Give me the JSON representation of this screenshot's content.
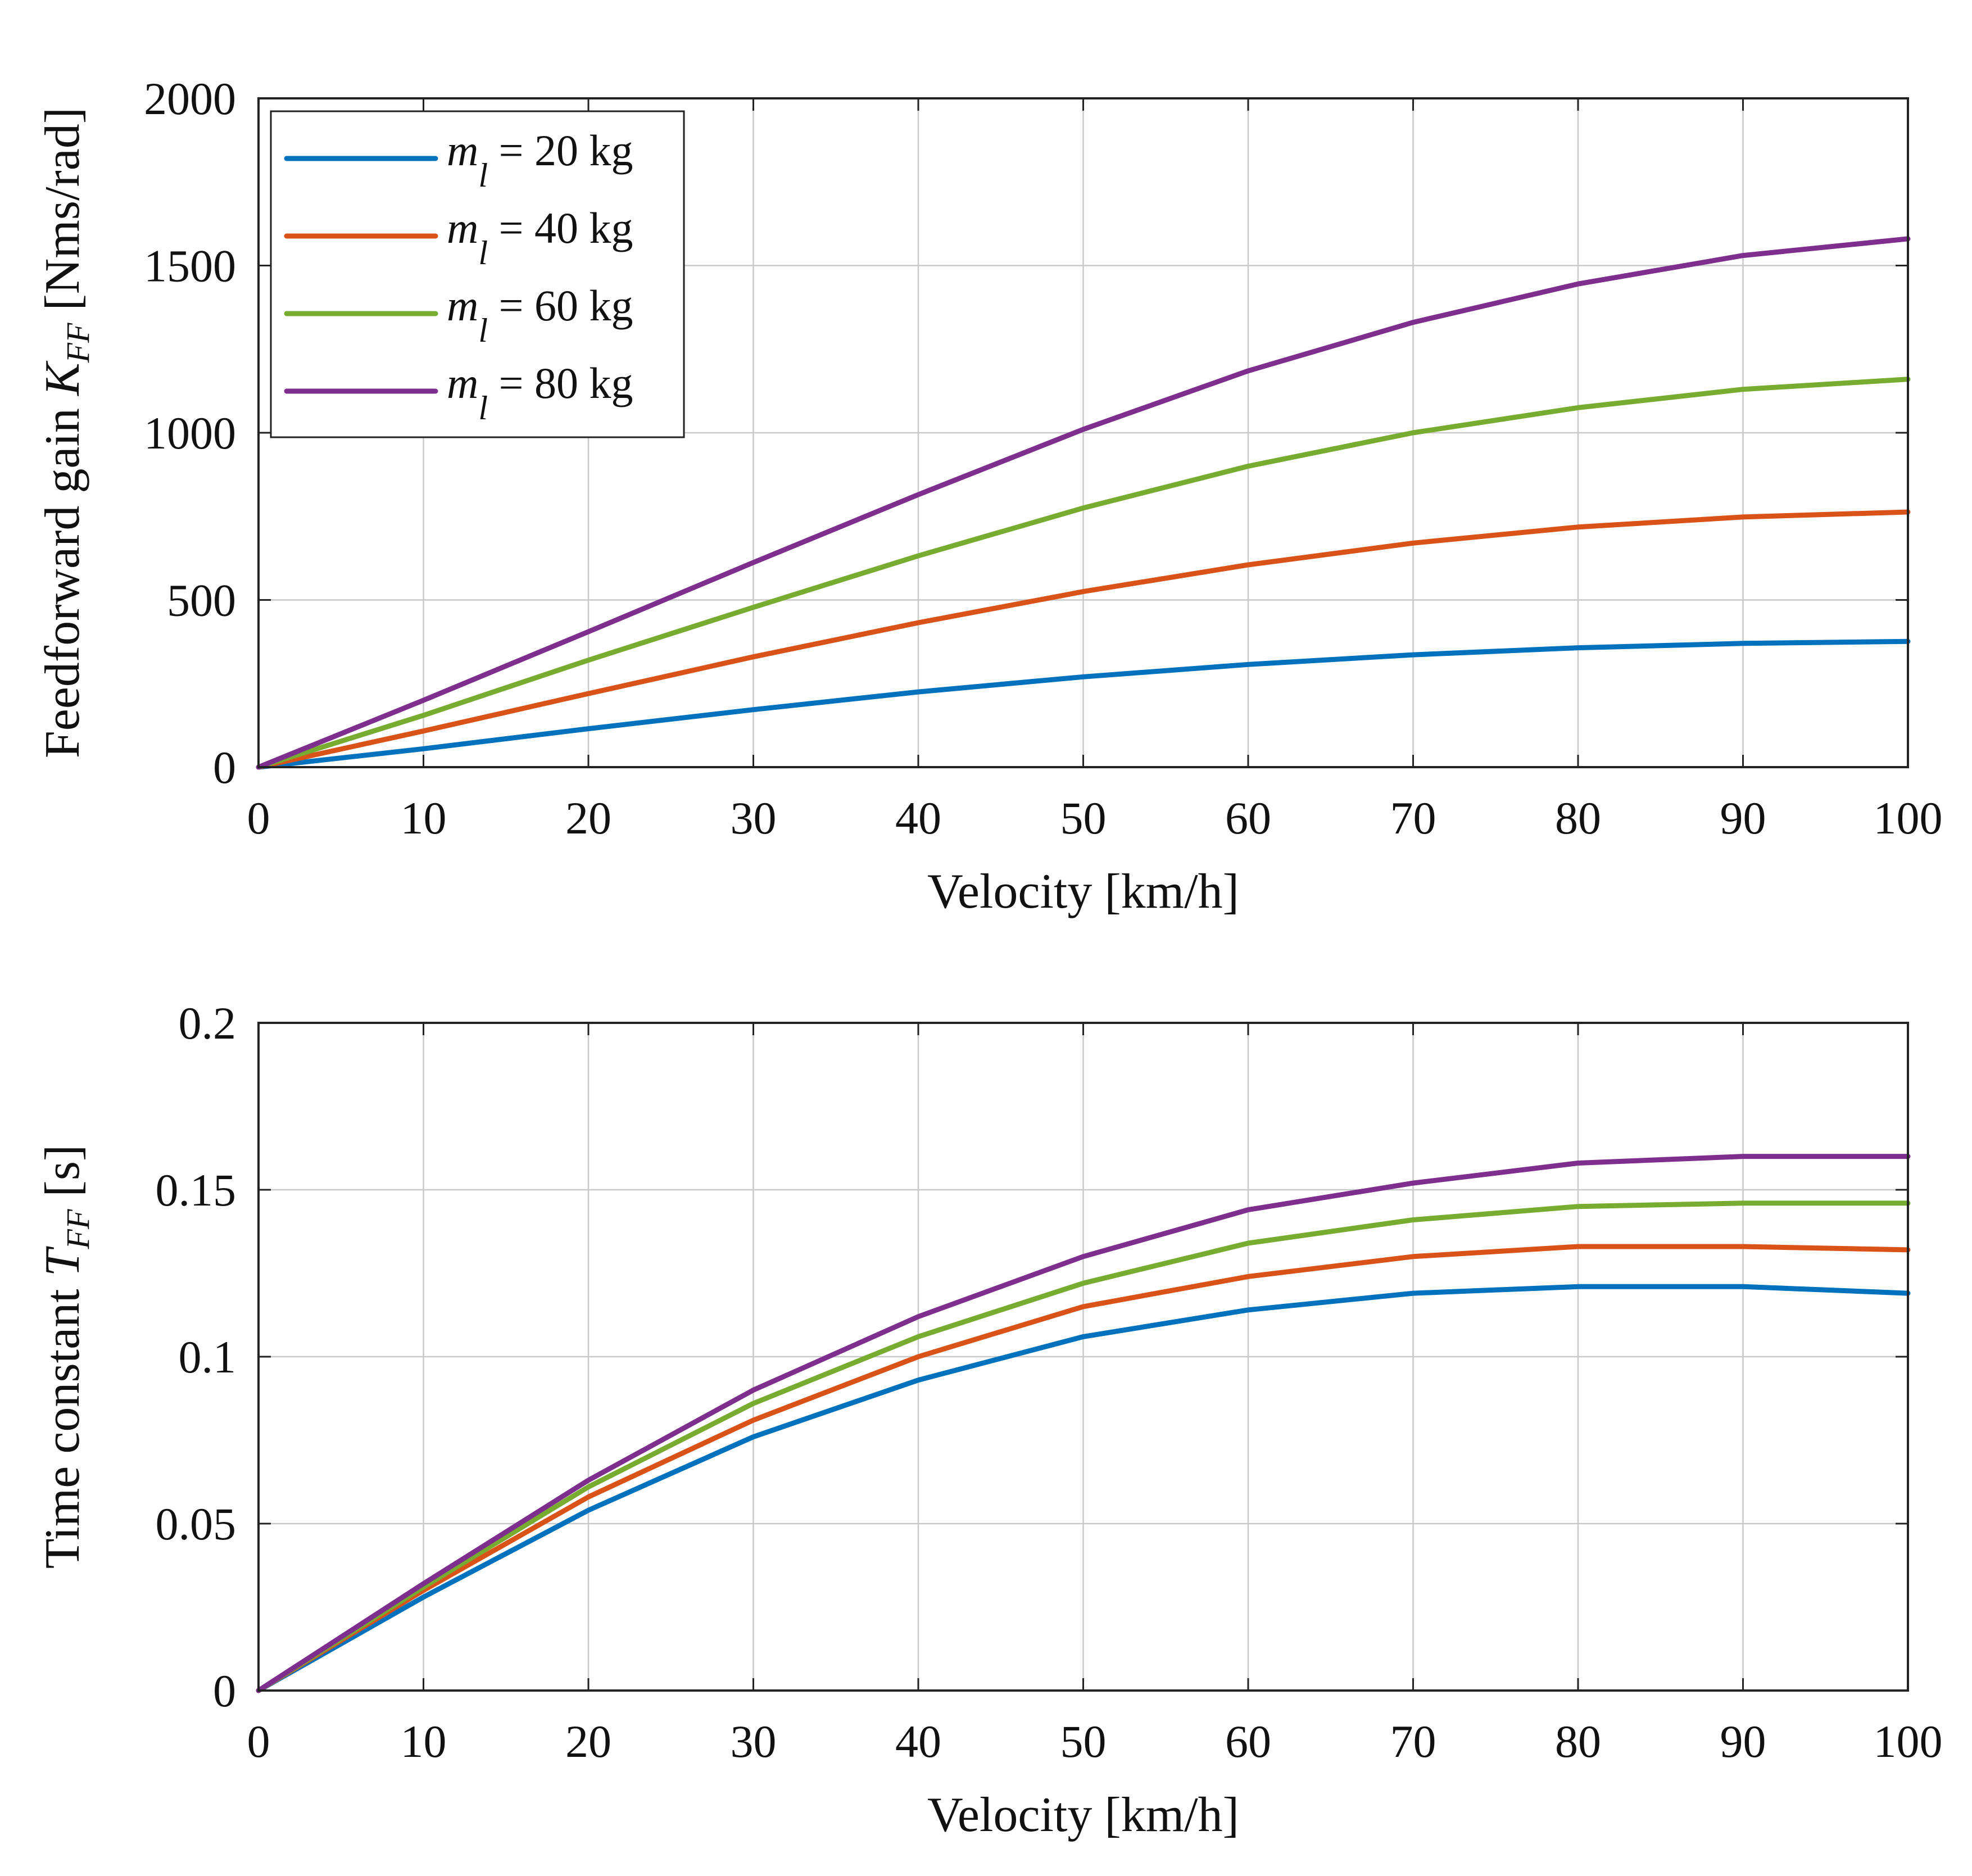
{
  "colors": {
    "m20": "#0072BD",
    "m40": "#D95319",
    "m60": "#77AC30",
    "m80": "#7E2F8E"
  },
  "chart_data": [
    {
      "type": "line",
      "title": "",
      "xlabel": "Velocity [km/h]",
      "ylabel": "Feedforward gain K_FF [Nms/rad]",
      "ylabel_parts": {
        "pre": "Feedforward gain ",
        "sym": "K",
        "sub": "FF",
        "post": " [Nms/rad]"
      },
      "xlim": [
        0,
        100
      ],
      "ylim": [
        0,
        2000
      ],
      "xticks": [
        0,
        10,
        20,
        30,
        40,
        50,
        60,
        70,
        80,
        90,
        100
      ],
      "yticks": [
        0,
        500,
        1000,
        1500,
        2000
      ],
      "xtick_labels": [
        "0",
        "10",
        "20",
        "30",
        "40",
        "50",
        "60",
        "70",
        "80",
        "90",
        "100"
      ],
      "ytick_labels": [
        "0",
        "500",
        "1000",
        "1500",
        "2000"
      ],
      "grid": true,
      "legend": {
        "position": "top-left",
        "entries": [
          {
            "symbol": "m",
            "sub": "l",
            "text": " = 20 kg"
          },
          {
            "symbol": "m",
            "sub": "l",
            "text": " = 40 kg"
          },
          {
            "symbol": "m",
            "sub": "l",
            "text": " = 60 kg"
          },
          {
            "symbol": "m",
            "sub": "l",
            "text": " = 80 kg"
          }
        ]
      },
      "x": [
        0,
        10,
        20,
        30,
        40,
        50,
        60,
        70,
        80,
        90,
        100
      ],
      "series": [
        {
          "name": "m_l = 20 kg",
          "color_key": "m20",
          "values": [
            0,
            55,
            115,
            172,
            225,
            270,
            307,
            336,
            357,
            370,
            376
          ]
        },
        {
          "name": "m_l = 40 kg",
          "color_key": "m40",
          "values": [
            0,
            108,
            220,
            330,
            432,
            525,
            605,
            670,
            718,
            748,
            763
          ]
        },
        {
          "name": "m_l = 60 kg",
          "color_key": "m60",
          "values": [
            0,
            155,
            320,
            478,
            632,
            775,
            900,
            1000,
            1075,
            1130,
            1160
          ]
        },
        {
          "name": "m_l = 80 kg",
          "color_key": "m80",
          "values": [
            0,
            200,
            405,
            612,
            815,
            1010,
            1185,
            1330,
            1445,
            1530,
            1580
          ]
        }
      ]
    },
    {
      "type": "line",
      "title": "",
      "xlabel": "Velocity [km/h]",
      "ylabel": "Time constant T_FF [s]",
      "ylabel_parts": {
        "pre": "Time constant ",
        "sym": "T",
        "sub": "FF",
        "post": " [s]"
      },
      "xlim": [
        0,
        100
      ],
      "ylim": [
        0,
        0.2
      ],
      "xticks": [
        0,
        10,
        20,
        30,
        40,
        50,
        60,
        70,
        80,
        90,
        100
      ],
      "yticks": [
        0,
        0.05,
        0.1,
        0.15,
        0.2
      ],
      "xtick_labels": [
        "0",
        "10",
        "20",
        "30",
        "40",
        "50",
        "60",
        "70",
        "80",
        "90",
        "100"
      ],
      "ytick_labels": [
        "0",
        "0.05",
        "0.1",
        "0.15",
        "0.2"
      ],
      "grid": true,
      "x": [
        0,
        10,
        20,
        30,
        40,
        50,
        60,
        70,
        80,
        90,
        100
      ],
      "series": [
        {
          "name": "m_l = 20 kg",
          "color_key": "m20",
          "values": [
            0,
            0.028,
            0.054,
            0.076,
            0.093,
            0.106,
            0.114,
            0.119,
            0.121,
            0.121,
            0.119
          ]
        },
        {
          "name": "m_l = 40 kg",
          "color_key": "m40",
          "values": [
            0,
            0.03,
            0.058,
            0.081,
            0.1,
            0.115,
            0.124,
            0.13,
            0.133,
            0.133,
            0.132
          ]
        },
        {
          "name": "m_l = 60 kg",
          "color_key": "m60",
          "values": [
            0,
            0.031,
            0.061,
            0.086,
            0.106,
            0.122,
            0.134,
            0.141,
            0.145,
            0.146,
            0.146
          ]
        },
        {
          "name": "m_l = 80 kg",
          "color_key": "m80",
          "values": [
            0,
            0.032,
            0.063,
            0.09,
            0.112,
            0.13,
            0.144,
            0.152,
            0.158,
            0.16,
            0.16
          ]
        }
      ]
    }
  ]
}
